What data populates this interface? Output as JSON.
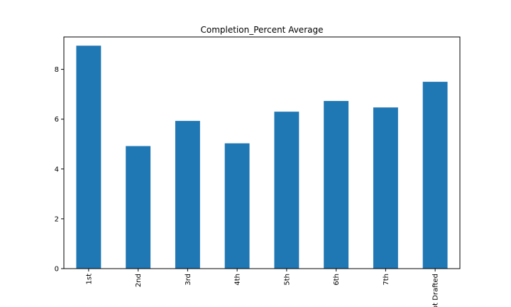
{
  "chart_data": {
    "type": "bar",
    "title": "Completion_Percent Average",
    "xlabel": "",
    "ylabel": "",
    "categories": [
      "1st",
      "2nd",
      "3rd",
      "4th",
      "5th",
      "6th",
      "7th",
      "Not Drafted"
    ],
    "values": [
      8.95,
      4.92,
      5.93,
      5.03,
      6.3,
      6.73,
      6.47,
      7.5
    ],
    "ylim": [
      0,
      9.3
    ],
    "yticks": [
      0,
      2,
      4,
      6,
      8
    ],
    "ytick_labels": [
      "0",
      "2",
      "4",
      "6",
      "8"
    ],
    "grid": false,
    "legend": "none",
    "bar_color": "#1f77b4"
  }
}
